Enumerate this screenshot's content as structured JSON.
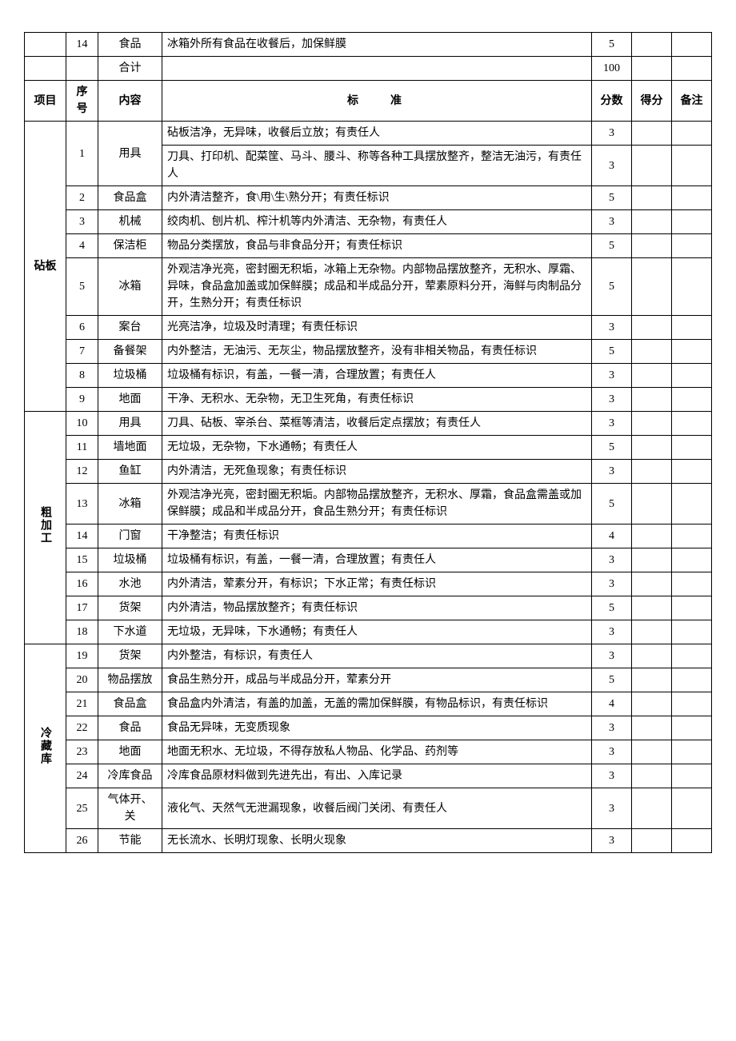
{
  "top_rows": [
    {
      "seq": "14",
      "content": "食品",
      "standard": "冰箱外所有食品在收餐后，加保鲜膜",
      "score": "5"
    },
    {
      "seq": "",
      "content": "合计",
      "standard": "",
      "score": "100"
    }
  ],
  "header": {
    "proj": "项目",
    "seq": "序号",
    "content": "内容",
    "standard": "标准",
    "score": "分数",
    "got": "得分",
    "note": "备注"
  },
  "sections": [
    {
      "name": "砧板",
      "rows": [
        {
          "seq": "1",
          "content": "用具",
          "content_rowspan": 2,
          "standard": "砧板洁净，无异味，收餐后立放；有责任人",
          "score": "3"
        },
        {
          "seq_continue": true,
          "standard": "刀具、打印机、配菜筐、马斗、腰斗、称等各种工具摆放整齐，整洁无油污，有责任人",
          "score": "3"
        },
        {
          "seq": "2",
          "content": "食品盒",
          "standard": "内外清洁整齐，食\\用\\生\\熟分开；有责任标识",
          "score": "5"
        },
        {
          "seq": "3",
          "content": "机械",
          "standard": "绞肉机、刨片机、榨汁机等内外清洁、无杂物，有责任人",
          "score": "3"
        },
        {
          "seq": "4",
          "content": "保洁柜",
          "standard": "物品分类摆放，食品与非食品分开；有责任标识",
          "score": "5"
        },
        {
          "seq": "5",
          "content": "冰箱",
          "standard": "外观洁净光亮，密封圈无积垢，冰箱上无杂物。内部物品摆放整齐，无积水、厚霜、异味，食品盒加盖或加保鲜膜；成品和半成品分开，荤素原料分开，海鲜与肉制品分开，生熟分开；有责任标识",
          "score": "5"
        },
        {
          "seq": "6",
          "content": "案台",
          "standard": "光亮洁净，垃圾及时清理；有责任标识",
          "score": "3"
        },
        {
          "seq": "7",
          "content": "备餐架",
          "standard": "内外整洁，无油污、无灰尘，物品摆放整齐，没有非相关物品，有责任标识",
          "score": "5"
        },
        {
          "seq": "8",
          "content": "垃圾桶",
          "standard": "垃圾桶有标识，有盖，一餐一清，合理放置；有责任人",
          "score": "3"
        },
        {
          "seq": "9",
          "content": "地面",
          "standard": "干净、无积水、无杂物，无卫生死角，有责任标识",
          "score": "3"
        }
      ]
    },
    {
      "name": "粗加工",
      "rows": [
        {
          "seq": "10",
          "content": "用具",
          "standard": "刀具、砧板、宰杀台、菜框等清洁，收餐后定点摆放；有责任人",
          "score": "3"
        },
        {
          "seq": "11",
          "content": "墙地面",
          "standard": "无垃圾，无杂物，下水通畅；有责任人",
          "score": "5"
        },
        {
          "seq": "12",
          "content": "鱼缸",
          "standard": "内外清洁，无死鱼现象；有责任标识",
          "score": "3"
        },
        {
          "seq": "13",
          "content": "冰箱",
          "standard": "外观洁净光亮，密封圈无积垢。内部物品摆放整齐，无积水、厚霜，食品盒需盖或加保鲜膜；成品和半成品分开，食品生熟分开；有责任标识",
          "score": "5"
        },
        {
          "seq": "14",
          "content": "门窗",
          "standard": "干净整洁；有责任标识",
          "score": "4"
        },
        {
          "seq": "15",
          "content": "垃圾桶",
          "standard": "垃圾桶有标识，有盖，一餐一清，合理放置；有责任人",
          "score": "3"
        },
        {
          "seq": "16",
          "content": "水池",
          "standard": "内外清洁，荤素分开，有标识；下水正常；有责任标识",
          "score": "3"
        },
        {
          "seq": "17",
          "content": "货架",
          "standard": "内外清洁，物品摆放整齐；有责任标识",
          "score": "5"
        },
        {
          "seq": "18",
          "content": "下水道",
          "standard": "无垃圾，无异味，下水通畅；有责任人",
          "score": "3"
        }
      ]
    },
    {
      "name": "冷藏库",
      "rows": [
        {
          "seq": "19",
          "content": "货架",
          "standard": "内外整洁，有标识，有责任人",
          "score": "3"
        },
        {
          "seq": "20",
          "content": "物品摆放",
          "standard": "食品生熟分开，成品与半成品分开，荤素分开",
          "score": "5"
        },
        {
          "seq": "21",
          "content": "食品盒",
          "standard": "食品盒内外清洁，有盖的加盖，无盖的需加保鲜膜，有物品标识，有责任标识",
          "score": "4"
        },
        {
          "seq": "22",
          "content": "食品",
          "standard": "食品无异味，无变质现象",
          "score": "3"
        },
        {
          "seq": "23",
          "content": "地面",
          "standard": "地面无积水、无垃圾，不得存放私人物品、化学品、药剂等",
          "score": "3"
        },
        {
          "seq": "24",
          "content": "冷库食品",
          "standard": "冷库食品原材料做到先进先出，有出、入库记录",
          "score": "3"
        },
        {
          "seq": "25",
          "content": "气体开、关",
          "standard": "液化气、天然气无泄漏现象，收餐后阀门关闭、有责任人",
          "score": "3"
        },
        {
          "seq": "26",
          "content": "节能",
          "standard": "无长流水、长明灯现象、长明火现象",
          "score": "3"
        }
      ]
    }
  ]
}
